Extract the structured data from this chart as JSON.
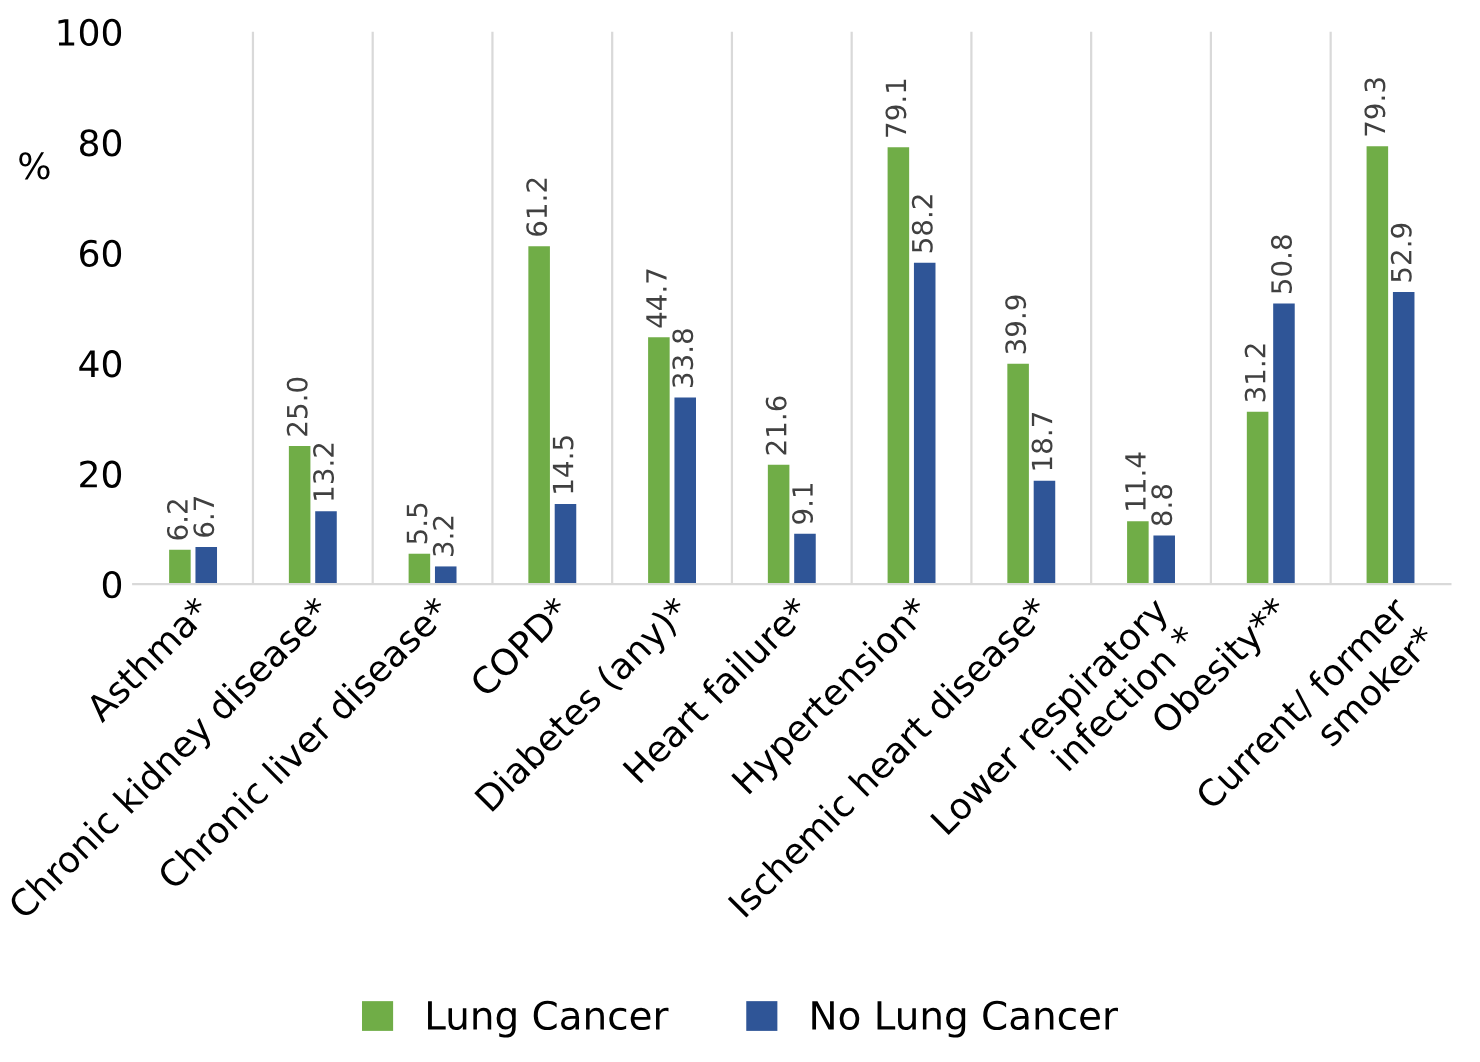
{
  "chart_data": {
    "type": "bar",
    "ylabel": "%",
    "categories": [
      "Asthma*",
      "Chronic kidney disease*",
      "Chronic liver disease*",
      "COPD*",
      "Diabetes (any)*",
      "Heart failure*",
      "Hypertension*",
      "Ischemic heart disease*",
      "Lower respiratory\ninfection *",
      "Obesity**",
      "Current/ former\nsmoker*"
    ],
    "series": [
      {
        "name": "Lung Cancer",
        "color": "#70ad47",
        "values": [
          6.2,
          25.0,
          5.5,
          61.2,
          44.7,
          21.6,
          79.1,
          39.9,
          11.4,
          31.2,
          79.3
        ],
        "value_labels": [
          "6.2",
          "25.0",
          "5.5",
          "61.2",
          "44.7",
          "21.6",
          "79.1",
          "39.9",
          "11.4",
          "31.2",
          "79.3"
        ]
      },
      {
        "name": "No Lung Cancer",
        "color": "#2f5597",
        "values": [
          6.7,
          13.2,
          3.2,
          14.5,
          33.8,
          9.1,
          58.2,
          18.7,
          8.8,
          50.8,
          52.9
        ],
        "value_labels": [
          "6.7",
          "13.2",
          "3.2",
          "14.5",
          "33.8",
          "9.1",
          "58.2",
          "18.7",
          "8.8",
          "50.8",
          "52.9"
        ]
      }
    ],
    "ylim": [
      0,
      100
    ],
    "yticks": [
      0,
      20,
      40,
      60,
      80,
      100
    ],
    "grid": "x",
    "legend": "bottom"
  }
}
